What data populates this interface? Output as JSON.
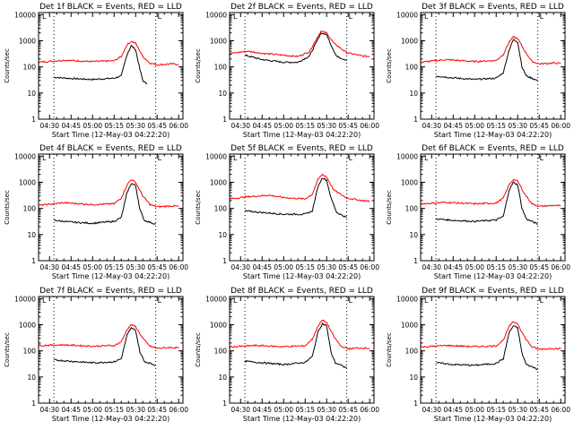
{
  "page": {
    "background": "#ffffff"
  },
  "style": {
    "events_color": "#000000",
    "lld_color": "#ff0000",
    "axis_color": "#000000"
  },
  "common": {
    "ylabel": "Counts/sec",
    "xlabel": "Start Time (12-May-03 04:22:20)",
    "xticks": [
      "04:30",
      "04:45",
      "05:00",
      "05:15",
      "05:30",
      "05:45",
      "06:00"
    ],
    "yticks": [
      "1",
      "10",
      "100",
      "1000",
      "10000"
    ],
    "marker_letter": "L"
  },
  "chart_data": [
    {
      "type": "line",
      "title": "Det 1f BLACK = Events, RED = LLD",
      "xlim": [
        "04:22:20",
        "06:03"
      ],
      "ylim": [
        1,
        12000
      ],
      "yscale": "log",
      "dotted_lines_x": [
        "04:33",
        "05:44"
      ],
      "series": [
        {
          "name": "Events",
          "x": [
            "04:33",
            "04:45",
            "05:00",
            "05:15",
            "05:20",
            "05:24",
            "05:27",
            "05:30",
            "05:33",
            "05:35",
            "05:38"
          ],
          "y": [
            40,
            36,
            33,
            37,
            45,
            300,
            650,
            450,
            80,
            30,
            22
          ]
        },
        {
          "name": "LLD",
          "x": [
            "04:22",
            "04:40",
            "05:00",
            "05:15",
            "05:20",
            "05:24",
            "05:27",
            "05:30",
            "05:35",
            "05:40",
            "05:45",
            "05:55",
            "06:00"
          ],
          "y": [
            150,
            180,
            160,
            170,
            250,
            700,
            950,
            800,
            250,
            140,
            120,
            130,
            125
          ]
        }
      ]
    },
    {
      "type": "line",
      "title": "Det 2f BLACK = Events, RED = LLD",
      "xlim": [
        "04:22:20",
        "06:03"
      ],
      "ylim": [
        1,
        12000
      ],
      "yscale": "log",
      "dotted_lines_x": [
        "04:33",
        "05:44"
      ],
      "series": [
        {
          "name": "Events",
          "x": [
            "04:33",
            "04:45",
            "05:00",
            "05:10",
            "05:18",
            "05:23",
            "05:26",
            "05:30",
            "05:33",
            "05:37",
            "05:44"
          ],
          "y": [
            280,
            190,
            150,
            150,
            260,
            900,
            2000,
            1700,
            700,
            250,
            180
          ]
        },
        {
          "name": "LLD",
          "x": [
            "04:22",
            "04:35",
            "04:45",
            "05:00",
            "05:10",
            "05:18",
            "05:23",
            "05:26",
            "05:30",
            "05:35",
            "05:44",
            "05:55",
            "06:00"
          ],
          "y": [
            320,
            400,
            330,
            280,
            250,
            380,
            1200,
            2300,
            2000,
            800,
            350,
            260,
            250
          ]
        }
      ]
    },
    {
      "type": "line",
      "title": "Det 3f BLACK = Events, RED = LLD",
      "xlim": [
        "04:22:20",
        "06:03"
      ],
      "ylim": [
        1,
        12000
      ],
      "yscale": "log",
      "dotted_lines_x": [
        "04:33",
        "05:44"
      ],
      "series": [
        {
          "name": "Events",
          "x": [
            "04:33",
            "04:45",
            "05:00",
            "05:15",
            "05:20",
            "05:24",
            "05:27",
            "05:30",
            "05:33",
            "05:36",
            "05:44"
          ],
          "y": [
            45,
            38,
            33,
            37,
            60,
            450,
            1100,
            900,
            100,
            45,
            30
          ]
        },
        {
          "name": "LLD",
          "x": [
            "04:22",
            "04:40",
            "05:00",
            "05:15",
            "05:20",
            "05:24",
            "05:27",
            "05:30",
            "05:35",
            "05:40",
            "05:45",
            "05:55",
            "06:00"
          ],
          "y": [
            150,
            190,
            160,
            175,
            300,
            900,
            1400,
            1200,
            400,
            160,
            130,
            140,
            135
          ]
        }
      ]
    },
    {
      "type": "line",
      "title": "Det 4f BLACK = Events, RED = LLD",
      "xlim": [
        "04:22:20",
        "06:03"
      ],
      "ylim": [
        1,
        12000
      ],
      "yscale": "log",
      "dotted_lines_x": [
        "04:33",
        "05:44"
      ],
      "series": [
        {
          "name": "Events",
          "x": [
            "04:33",
            "04:45",
            "05:00",
            "05:15",
            "05:20",
            "05:24",
            "05:27",
            "05:30",
            "05:33",
            "05:36",
            "05:44"
          ],
          "y": [
            35,
            30,
            27,
            32,
            45,
            400,
            900,
            750,
            90,
            35,
            25
          ]
        },
        {
          "name": "LLD",
          "x": [
            "04:22",
            "04:40",
            "05:00",
            "05:15",
            "05:20",
            "05:24",
            "05:27",
            "05:30",
            "05:35",
            "05:40",
            "05:45",
            "05:55",
            "06:00"
          ],
          "y": [
            130,
            165,
            140,
            150,
            250,
            800,
            1300,
            1000,
            300,
            140,
            115,
            125,
            120
          ]
        }
      ]
    },
    {
      "type": "line",
      "title": "Det 5f BLACK = Events, RED = LLD",
      "xlim": [
        "04:22:20",
        "06:03"
      ],
      "ylim": [
        1,
        12000
      ],
      "yscale": "log",
      "dotted_lines_x": [
        "04:33",
        "05:44"
      ],
      "series": [
        {
          "name": "Events",
          "x": [
            "04:33",
            "04:45",
            "05:00",
            "05:15",
            "05:20",
            "05:24",
            "05:27",
            "05:30",
            "05:33",
            "05:37",
            "05:44"
          ],
          "y": [
            80,
            70,
            60,
            60,
            80,
            700,
            1500,
            1200,
            250,
            70,
            45
          ]
        },
        {
          "name": "LLD",
          "x": [
            "04:22",
            "04:35",
            "04:50",
            "05:00",
            "05:15",
            "05:20",
            "05:24",
            "05:27",
            "05:30",
            "05:35",
            "05:44",
            "05:55",
            "06:00"
          ],
          "y": [
            230,
            280,
            320,
            260,
            230,
            350,
            1300,
            2000,
            1600,
            500,
            250,
            200,
            190
          ]
        }
      ]
    },
    {
      "type": "line",
      "title": "Det 6f BLACK = Events, RED = LLD",
      "xlim": [
        "04:22:20",
        "06:03"
      ],
      "ylim": [
        1,
        12000
      ],
      "yscale": "log",
      "dotted_lines_x": [
        "04:33",
        "05:44"
      ],
      "series": [
        {
          "name": "Events",
          "x": [
            "04:33",
            "04:45",
            "05:00",
            "05:15",
            "05:20",
            "05:24",
            "05:27",
            "05:30",
            "05:33",
            "05:36",
            "05:44"
          ],
          "y": [
            40,
            35,
            32,
            36,
            50,
            500,
            1000,
            800,
            100,
            40,
            25
          ]
        },
        {
          "name": "LLD",
          "x": [
            "04:22",
            "04:40",
            "05:00",
            "05:15",
            "05:20",
            "05:24",
            "05:27",
            "05:30",
            "05:35",
            "05:40",
            "05:45",
            "05:55",
            "06:00"
          ],
          "y": [
            150,
            170,
            150,
            160,
            250,
            800,
            1300,
            1100,
            350,
            150,
            120,
            130,
            125
          ]
        }
      ]
    },
    {
      "type": "line",
      "title": "Det 7f BLACK = Events, RED = LLD",
      "xlim": [
        "04:22:20",
        "06:03"
      ],
      "ylim": [
        1,
        12000
      ],
      "yscale": "log",
      "dotted_lines_x": [
        "04:33",
        "05:44"
      ],
      "series": [
        {
          "name": "Events",
          "x": [
            "04:33",
            "04:45",
            "05:00",
            "05:15",
            "05:20",
            "05:24",
            "05:27",
            "05:30",
            "05:33",
            "05:36",
            "05:44"
          ],
          "y": [
            45,
            40,
            35,
            38,
            50,
            400,
            750,
            600,
            90,
            40,
            28
          ]
        },
        {
          "name": "LLD",
          "x": [
            "04:22",
            "04:40",
            "05:00",
            "05:15",
            "05:20",
            "05:24",
            "05:27",
            "05:30",
            "05:35",
            "05:40",
            "05:45",
            "05:55",
            "06:00"
          ],
          "y": [
            160,
            170,
            150,
            160,
            220,
            650,
            1000,
            850,
            300,
            150,
            125,
            135,
            130
          ]
        }
      ]
    },
    {
      "type": "line",
      "title": "Det 8f BLACK = Events, RED = LLD",
      "xlim": [
        "04:22:20",
        "06:03"
      ],
      "ylim": [
        1,
        12000
      ],
      "yscale": "log",
      "dotted_lines_x": [
        "04:33",
        "05:44"
      ],
      "series": [
        {
          "name": "Events",
          "x": [
            "04:33",
            "04:45",
            "05:00",
            "05:15",
            "05:20",
            "05:24",
            "05:27",
            "05:30",
            "05:33",
            "05:36",
            "05:44"
          ],
          "y": [
            40,
            35,
            30,
            36,
            60,
            550,
            1100,
            900,
            90,
            35,
            22
          ]
        },
        {
          "name": "LLD",
          "x": [
            "04:22",
            "04:40",
            "05:00",
            "05:15",
            "05:20",
            "05:24",
            "05:27",
            "05:30",
            "05:35",
            "05:40",
            "05:45",
            "05:55",
            "06:00"
          ],
          "y": [
            140,
            160,
            145,
            155,
            280,
            900,
            1500,
            1200,
            350,
            150,
            120,
            130,
            125
          ]
        }
      ]
    },
    {
      "type": "line",
      "title": "Det 9f BLACK = Events, RED = LLD",
      "xlim": [
        "04:22:20",
        "06:03"
      ],
      "ylim": [
        1,
        12000
      ],
      "yscale": "log",
      "dotted_lines_x": [
        "04:33",
        "05:44"
      ],
      "series": [
        {
          "name": "Events",
          "x": [
            "04:33",
            "04:45",
            "05:00",
            "05:15",
            "05:20",
            "05:24",
            "05:27",
            "05:30",
            "05:33",
            "05:36",
            "05:44"
          ],
          "y": [
            35,
            30,
            28,
            33,
            50,
            500,
            900,
            750,
            80,
            30,
            20
          ]
        },
        {
          "name": "LLD",
          "x": [
            "04:22",
            "04:40",
            "05:00",
            "05:15",
            "05:20",
            "05:24",
            "05:27",
            "05:30",
            "05:35",
            "05:40",
            "05:45",
            "05:55",
            "06:00"
          ],
          "y": [
            140,
            160,
            145,
            155,
            260,
            850,
            1300,
            1100,
            320,
            140,
            115,
            125,
            120
          ]
        }
      ]
    }
  ]
}
